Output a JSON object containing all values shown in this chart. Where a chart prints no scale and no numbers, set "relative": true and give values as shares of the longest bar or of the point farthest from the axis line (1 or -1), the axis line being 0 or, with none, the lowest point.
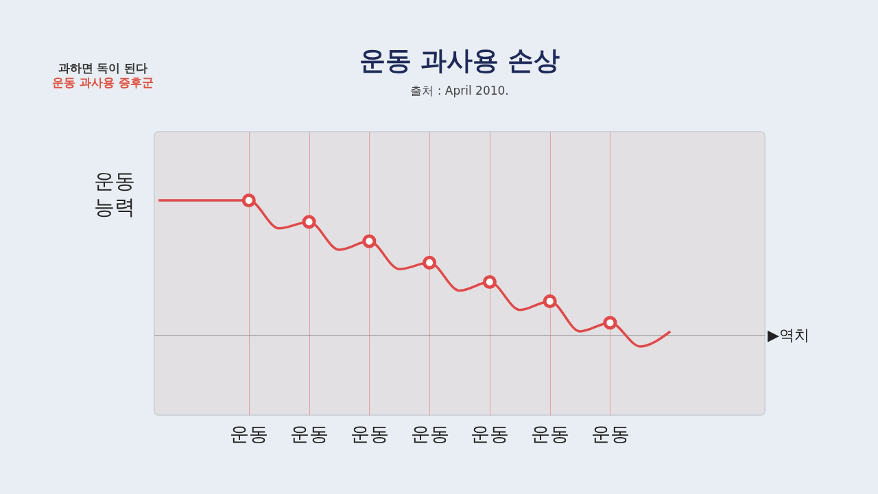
{
  "chart_data": {
    "type": "line",
    "title": "운동 과사용 손상",
    "subtitle": "출처 : April 2010.",
    "ylabel": "운동\n능력",
    "relative": true,
    "categories": [
      null,
      null,
      null,
      "운동",
      null,
      "운동",
      null,
      "운동",
      null,
      "운동",
      null,
      "운동",
      null,
      "운동",
      null,
      "운동",
      null,
      null,
      null,
      null,
      null
    ],
    "grid": "x",
    "tick_labels": "x",
    "annotations": [
      "과하면 독이 된다",
      "운동 과사용 증후군"
    ],
    "ref_lines": [
      {
        "axis": "y",
        "value": 0.37,
        "label": "▶역치",
        "color": "#8a8a8a"
      }
    ],
    "series": [
      {
        "color": "#e04a4a",
        "marker": "none",
        "values": [
          1.0,
          1.0,
          1.0,
          1.0,
          0.87,
          0.9,
          0.77,
          0.81,
          0.68,
          0.71,
          0.58,
          0.62,
          0.49,
          0.53,
          0.39,
          0.43,
          0.32,
          0.39,
          null,
          null,
          null
        ]
      },
      {
        "type": "scatter",
        "color": "#e04a4a",
        "marker": "circle",
        "values": [
          null,
          null,
          null,
          1.0,
          null,
          0.9,
          null,
          0.81,
          null,
          0.71,
          null,
          0.62,
          null,
          0.53,
          null,
          0.43,
          null,
          null,
          null,
          null,
          null
        ]
      }
    ]
  }
}
